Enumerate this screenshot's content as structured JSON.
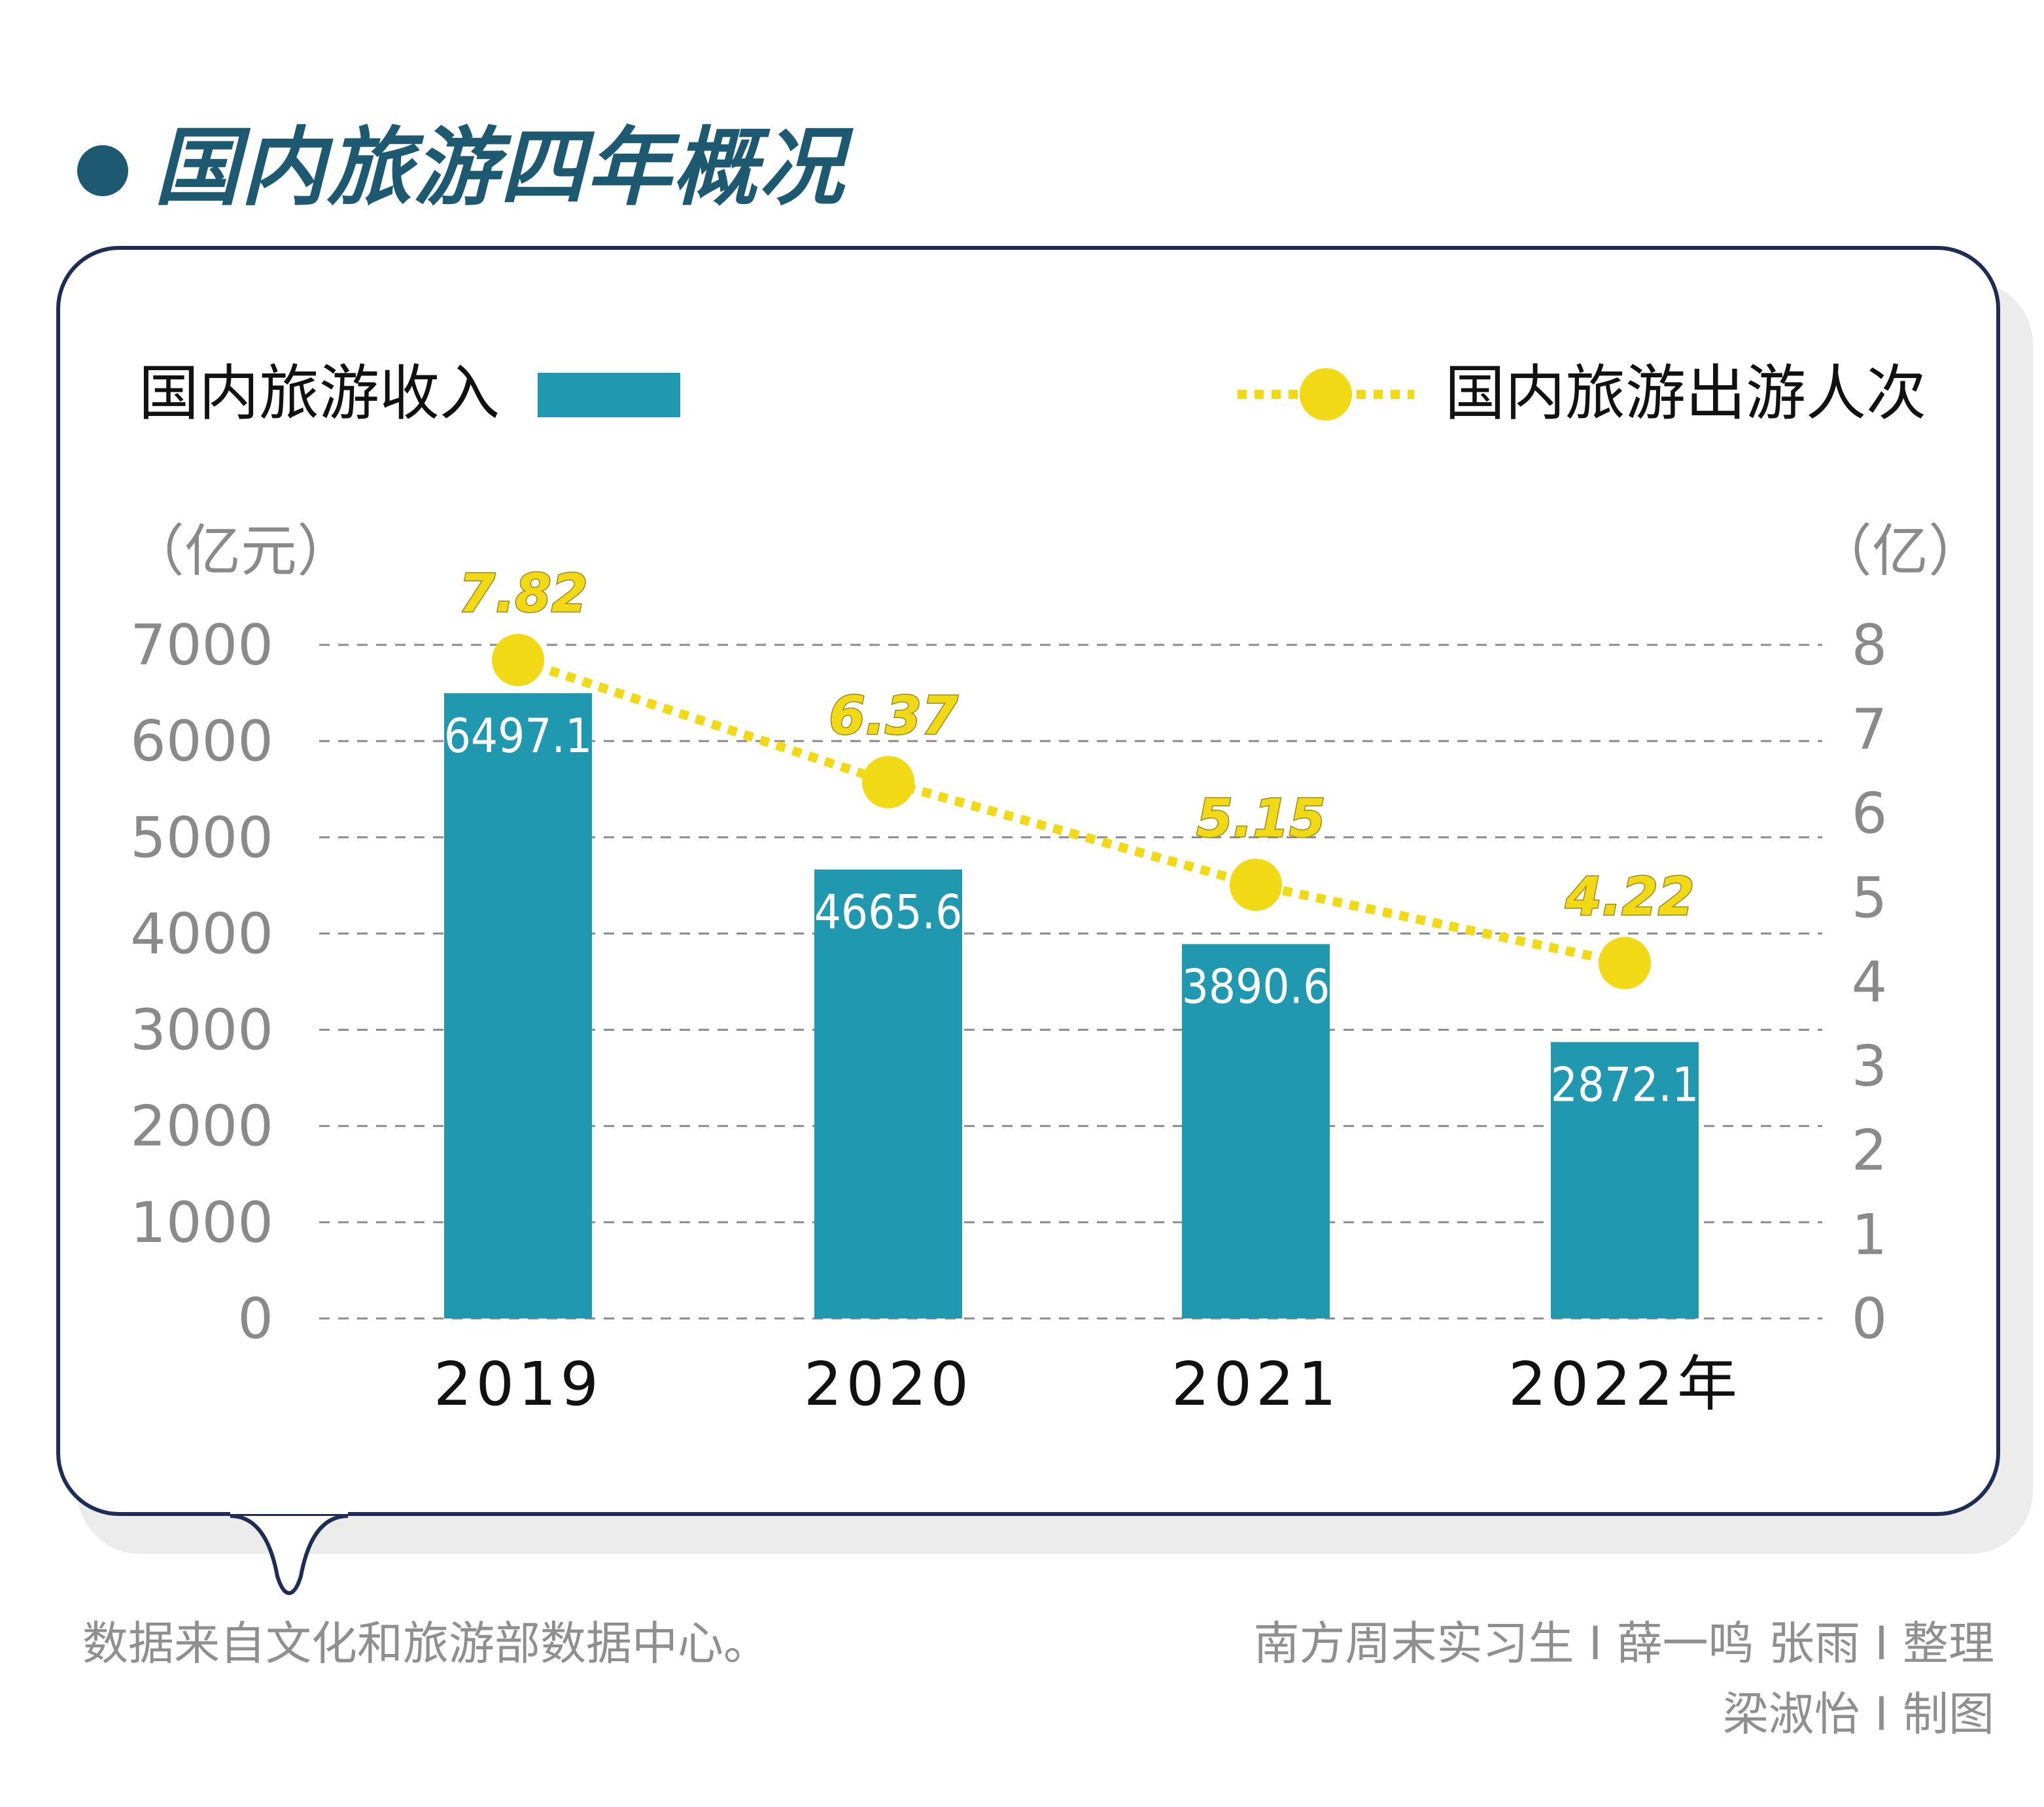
{
  "title": "国内旅游四年概况",
  "legend": {
    "income": "国内旅游收入",
    "trips": "国内旅游出游人次"
  },
  "colors": {
    "bar": "#1f98b0",
    "line": "#f2d916",
    "title": "#1d5a72",
    "border": "#1f2d55",
    "grid": "#8a8a8a"
  },
  "chart_data": {
    "type": "bar",
    "title": "国内旅游四年概况",
    "categories": [
      "2019",
      "2020",
      "2021",
      "2022年"
    ],
    "series": [
      {
        "name": "国内旅游收入",
        "type": "bar",
        "axis": "left",
        "unit": "（亿元）",
        "values": [
          6497.1,
          4665.6,
          3890.6,
          2872.1
        ],
        "labels": [
          "6497.1",
          "4665.6",
          "3890.6",
          "2872.1"
        ]
      },
      {
        "name": "国内旅游出游人次",
        "type": "line",
        "axis": "right",
        "unit": "（亿）",
        "values": [
          7.82,
          6.37,
          5.15,
          4.22
        ],
        "labels": [
          "7.82",
          "6.37",
          "5.15",
          "4.22"
        ]
      }
    ],
    "y_left": {
      "label": "（亿元）",
      "range": [
        0,
        7000
      ],
      "ticks": [
        "0",
        "1000",
        "2000",
        "3000",
        "4000",
        "5000",
        "6000",
        "7000"
      ]
    },
    "y_right": {
      "label": "（亿）",
      "range": [
        0,
        8
      ],
      "ticks": [
        "0",
        "1",
        "2",
        "3",
        "4",
        "5",
        "6",
        "7",
        "8"
      ]
    },
    "grid": true,
    "legend_position": "top"
  },
  "footer": {
    "source": "数据来自文化和旅游部数据中心。",
    "credit_line1": "南方周末实习生 I 薛一鸣  张雨 I 整理",
    "credit_line2": "梁淑怡 I 制图"
  }
}
